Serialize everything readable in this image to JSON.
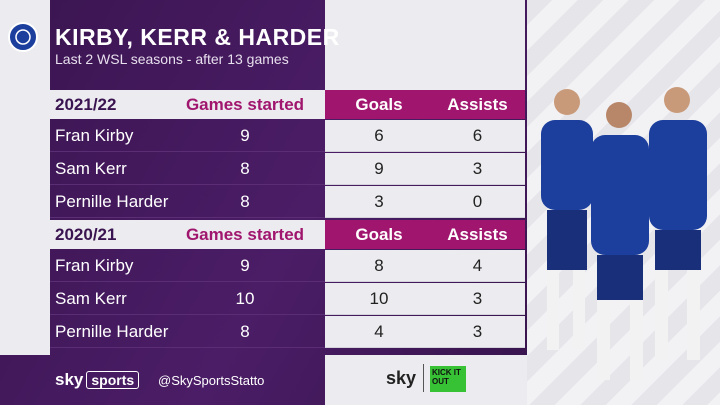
{
  "header": {
    "title": "KIRBY, KERR & HARDER",
    "subtitle": "Last 2 WSL seasons - after 13 games"
  },
  "tables": [
    {
      "season": "2021/22",
      "columns": [
        "Games started",
        "Goals",
        "Assists"
      ],
      "rows": [
        [
          "Fran Kirby",
          9,
          6,
          6
        ],
        [
          "Sam Kerr",
          8,
          9,
          3
        ],
        [
          "Pernille Harder",
          8,
          3,
          0
        ]
      ]
    },
    {
      "season": "2020/21",
      "columns": [
        "Games started",
        "Goals",
        "Assists"
      ],
      "rows": [
        [
          "Fran Kirby",
          9,
          8,
          4
        ],
        [
          "Sam Kerr",
          10,
          10,
          3
        ],
        [
          "Pernille Harder",
          8,
          4,
          3
        ]
      ]
    }
  ],
  "footer": {
    "logo": [
      "sky",
      "sports"
    ],
    "handle": "@SkySportsStatto",
    "partner": "sky",
    "campaign": "KICK IT OUT"
  }
}
